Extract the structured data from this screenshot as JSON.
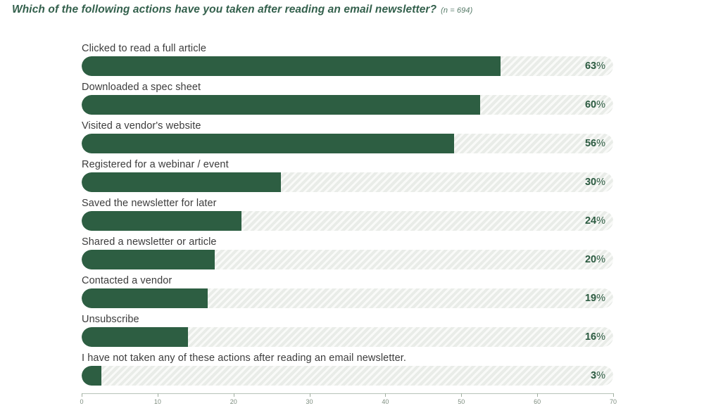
{
  "title": "Which of the following actions have you taken after reading an email newsletter?",
  "sample_note": "(n = 694)",
  "chart_data": {
    "type": "bar",
    "orientation": "horizontal",
    "title": "Which of the following actions have you taken after reading an email newsletter?",
    "subtitle": "(n = 694)",
    "unit": "%",
    "categories": [
      "Clicked to read a full article",
      "Downloaded a spec sheet",
      "Visited a vendor's website",
      "Registered for a webinar / event",
      "Saved the newsletter for later",
      "Shared a newsletter or article",
      "Contacted a vendor",
      "Unsubscribe",
      "I have not taken any of these actions after reading an email newsletter."
    ],
    "values": [
      63,
      60,
      56,
      30,
      24,
      20,
      19,
      16,
      3
    ],
    "x_ticks": [
      0,
      10,
      20,
      30,
      40,
      50,
      60,
      70
    ],
    "xlim": [
      0,
      70
    ],
    "bar_scale_max": 80,
    "grid": false,
    "legend": false,
    "colors": {
      "bar": "#2d5e42",
      "track": "#e9ece8",
      "track_stripe": "#f9faf8",
      "title": "#33604c",
      "value_label": "#2c5b41",
      "category_label": "#3c3c3c",
      "axis_label": "#7d8d7f"
    }
  }
}
